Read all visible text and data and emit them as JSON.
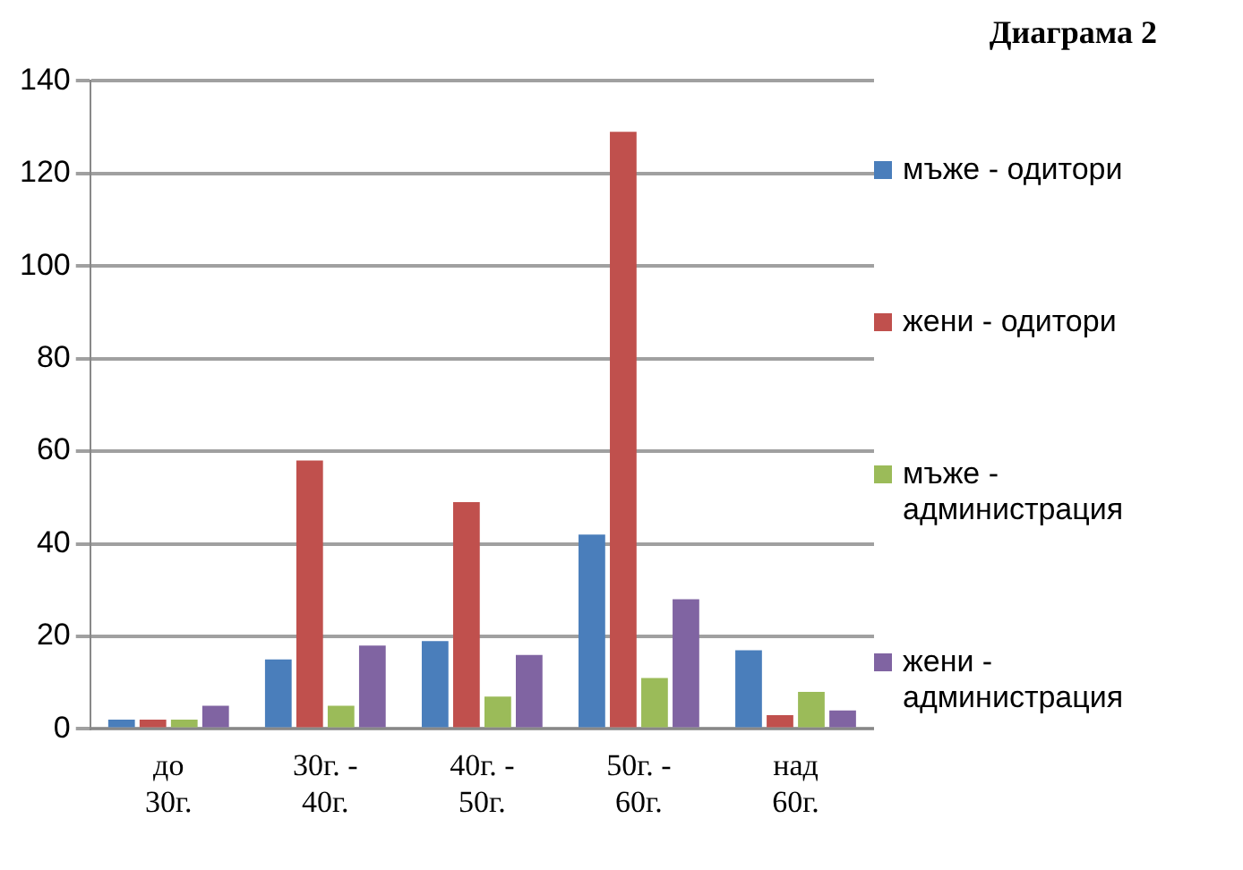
{
  "chart_data": {
    "type": "bar",
    "title": "Диаграма 2",
    "categories": [
      "до 30г.",
      "30г. - 40г.",
      "40г. - 50г.",
      "50г. - 60г.",
      "над 60г."
    ],
    "series": [
      {
        "name": "мъже - одитори",
        "color": "#4a7ebb",
        "values": [
          2,
          15,
          19,
          42,
          17
        ]
      },
      {
        "name": "жени - одитори",
        "color": "#c0504d",
        "values": [
          2,
          58,
          49,
          129,
          3
        ]
      },
      {
        "name": "мъже - администрация",
        "color": "#9bbb59",
        "values": [
          2,
          5,
          7,
          11,
          8
        ]
      },
      {
        "name": "жени - администрация",
        "color": "#8064a2",
        "values": [
          5,
          18,
          16,
          28,
          4
        ]
      }
    ],
    "ylim": [
      0,
      140
    ],
    "yticks": [
      0,
      20,
      40,
      60,
      80,
      100,
      120,
      140
    ],
    "grid": "y",
    "legend": "right"
  }
}
